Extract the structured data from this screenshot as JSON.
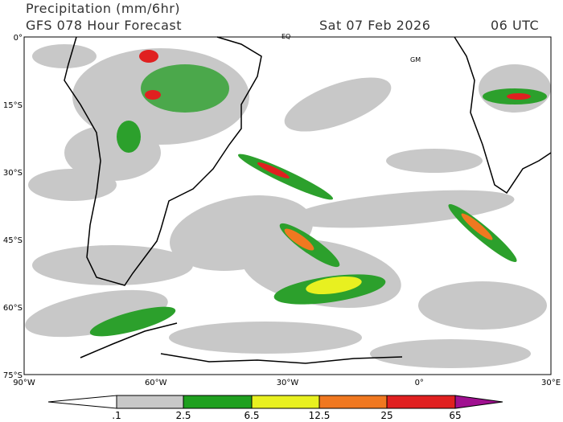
{
  "header": {
    "title": "Precipitation (mm/6hr)",
    "model": "GFS 078 Hour Forecast",
    "date": "Sat 07 Feb 2026",
    "time": "06 UTC"
  },
  "map": {
    "lat_labels": [
      "0°",
      "15°S",
      "30°S",
      "45°S",
      "60°S",
      "75°S"
    ],
    "lon_labels": [
      "90°W",
      "60°W",
      "30°W",
      "0°",
      "30°E"
    ],
    "annotations": [
      "EQ",
      "GM"
    ]
  },
  "colorbar": {
    "labels": [
      ".1",
      "2.5",
      "6.5",
      "12.5",
      "25",
      "65"
    ]
  }
}
